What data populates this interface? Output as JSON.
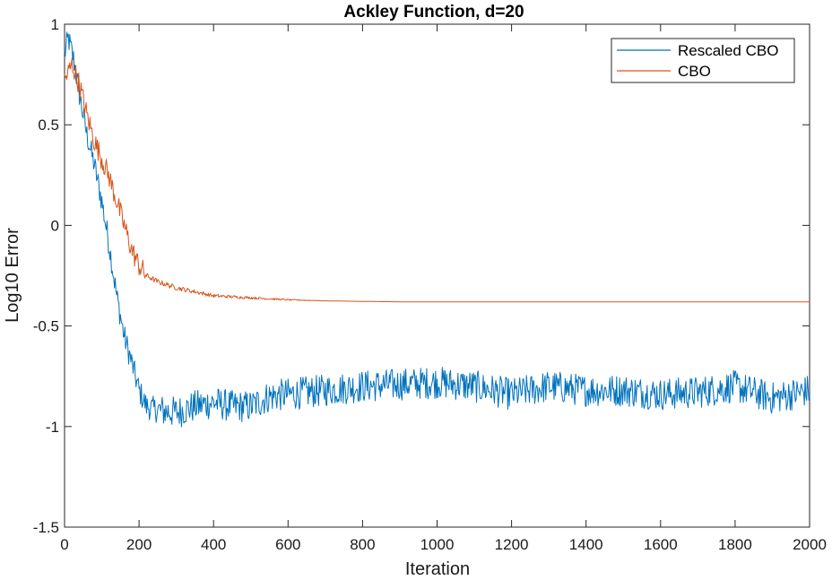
{
  "chart_data": {
    "type": "line",
    "title": "Ackley Function, d=20",
    "xlabel": "Iteration",
    "ylabel": "Log10 Error",
    "xlim": [
      0,
      2000
    ],
    "ylim": [
      -1.5,
      1
    ],
    "xticks": [
      0,
      200,
      400,
      600,
      800,
      1000,
      1200,
      1400,
      1600,
      1800,
      2000
    ],
    "yticks": [
      1,
      0.5,
      0,
      -0.5,
      -1,
      -1.5
    ],
    "xtick_labels": [
      "0",
      "200",
      "400",
      "600",
      "800",
      "1000",
      "1200",
      "1400",
      "1600",
      "1800",
      "2000"
    ],
    "ytick_labels": [
      "1",
      "0.5",
      "0",
      "-0.5",
      "-1",
      "-1.5"
    ],
    "grid": false,
    "legend_position": "top-right",
    "series": [
      {
        "name": "Rescaled CBO",
        "color": "#0072BD",
        "noise": 0.07,
        "x": [
          0,
          10,
          25,
          40,
          60,
          80,
          100,
          120,
          140,
          160,
          180,
          200,
          220,
          250,
          300,
          350,
          400,
          450,
          500,
          550,
          600,
          700,
          800,
          900,
          1000,
          1100,
          1200,
          1300,
          1400,
          1500,
          1600,
          1700,
          1800,
          1900,
          2000
        ],
        "y": [
          0.85,
          0.93,
          0.82,
          0.65,
          0.45,
          0.3,
          0.12,
          -0.1,
          -0.35,
          -0.55,
          -0.68,
          -0.82,
          -0.9,
          -0.92,
          -0.93,
          -0.9,
          -0.88,
          -0.9,
          -0.9,
          -0.85,
          -0.84,
          -0.82,
          -0.8,
          -0.79,
          -0.78,
          -0.8,
          -0.84,
          -0.8,
          -0.82,
          -0.82,
          -0.84,
          -0.83,
          -0.8,
          -0.86,
          -0.82
        ]
      },
      {
        "name": "CBO",
        "color": "#D95319",
        "noise": 0.035,
        "x": [
          0,
          20,
          40,
          60,
          80,
          100,
          120,
          140,
          160,
          180,
          200,
          220,
          250,
          300,
          350,
          400,
          500,
          600,
          700,
          800,
          900,
          1000,
          1200,
          1500,
          2000
        ],
        "y": [
          0.72,
          0.8,
          0.7,
          0.55,
          0.42,
          0.33,
          0.24,
          0.12,
          0.0,
          -0.12,
          -0.2,
          -0.25,
          -0.28,
          -0.31,
          -0.33,
          -0.35,
          -0.36,
          -0.37,
          -0.375,
          -0.378,
          -0.38,
          -0.38,
          -0.38,
          -0.38,
          -0.38
        ]
      }
    ]
  }
}
